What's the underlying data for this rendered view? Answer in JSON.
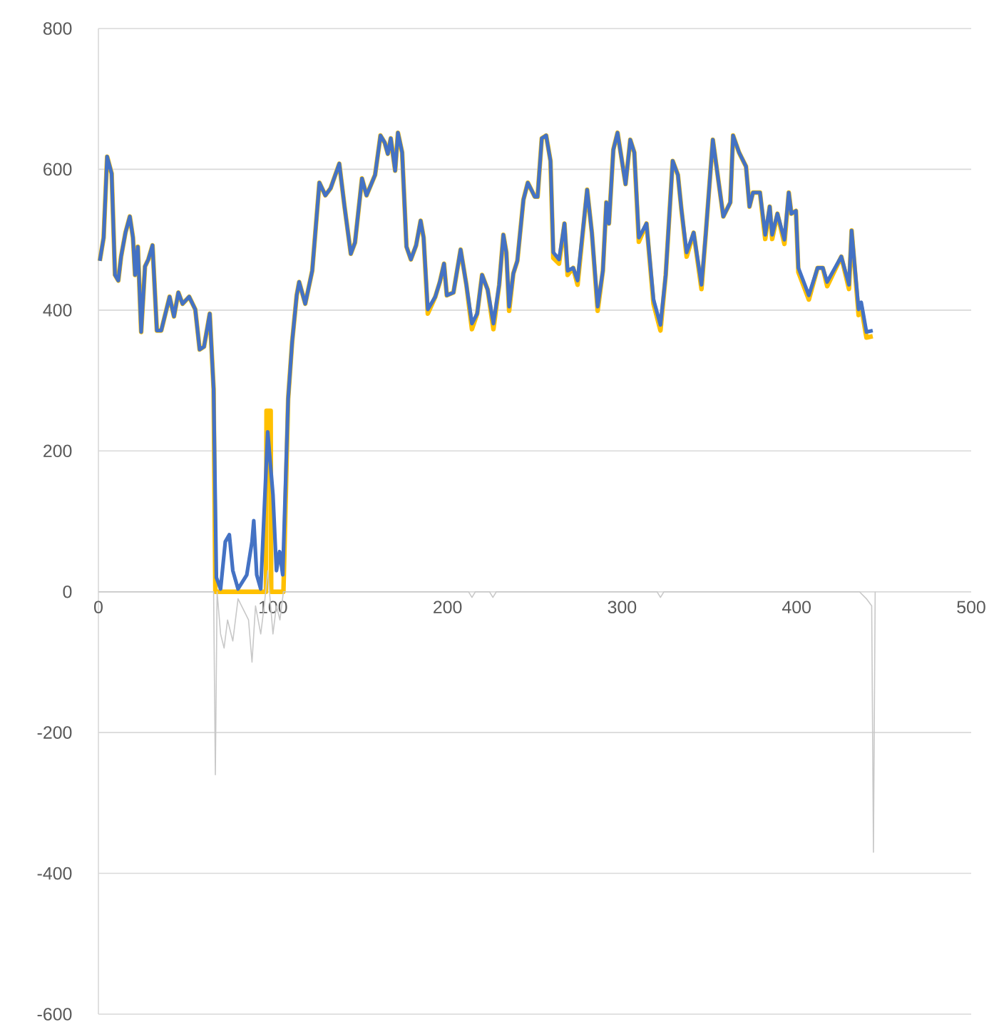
{
  "chart_data": {
    "type": "line",
    "xlim": [
      0,
      500
    ],
    "ylim": [
      -600,
      800
    ],
    "xticks": [
      0,
      100,
      200,
      300,
      400,
      500
    ],
    "yticks": [
      -600,
      -400,
      -200,
      0,
      200,
      400,
      600,
      800
    ],
    "grid": "y",
    "line_style": "solid",
    "series": [
      {
        "color": "#ffc000",
        "x": [
          0.8,
          3,
          5,
          7.6,
          9.5,
          11.4,
          13,
          15.5,
          18,
          19.8,
          21,
          22.6,
          24.5,
          26.7,
          28.6,
          31,
          33.5,
          36,
          40.8,
          43.3,
          45.8,
          48.2,
          52,
          55.5,
          58,
          60.5,
          63.8,
          66,
          67,
          96,
          96.3,
          98.7,
          99,
          106,
          108.7,
          111,
          113.6,
          115,
          118.5,
          122.5,
          126.6,
          130,
          133,
          138,
          141,
          144.6,
          147,
          151,
          153.6,
          158.5,
          161.6,
          164,
          165.8,
          167.5,
          170,
          171.6,
          174,
          176.5,
          179,
          182,
          184.6,
          186.3,
          188.7,
          193,
          195.6,
          198,
          199.6,
          203.4,
          207.5,
          210.8,
          214,
          217,
          219.8,
          223,
          226.3,
          229.6,
          232,
          233.7,
          235.3,
          237.7,
          240,
          243.5,
          246,
          250,
          251.6,
          254,
          256.5,
          259,
          260.6,
          263.9,
          267,
          268.8,
          272,
          274.5,
          280,
          282.7,
          286,
          289,
          291,
          292.5,
          295,
          297.4,
          302,
          304.7,
          307,
          309.6,
          314,
          318,
          322,
          325,
          329,
          332,
          334,
          337,
          341,
          345.5,
          348,
          352,
          358,
          362,
          363.6,
          367,
          371,
          373,
          375,
          379,
          382,
          384.6,
          386,
          389,
          393,
          395.5,
          397,
          399.6,
          401,
          407,
          412,
          415,
          417.5,
          425.6,
          430,
          431.5,
          435.5,
          437,
          440,
          443.6
        ],
        "values": [
          470,
          503,
          618,
          594,
          450,
          442,
          476,
          510,
          533,
          503,
          450,
          490,
          369,
          462,
          472,
          492,
          371,
          371,
          419,
          391,
          425,
          409,
          419,
          401,
          344,
          348,
          395,
          288,
          0,
          0,
          257,
          257,
          0,
          0,
          274,
          355,
          421,
          440,
          409,
          456,
          581,
          563,
          573,
          608,
          547,
          480,
          496,
          587,
          563,
          592,
          648,
          638,
          622,
          644,
          598,
          652,
          624,
          490,
          472,
          492,
          527,
          503,
          395,
          419,
          440,
          466,
          421,
          425,
          486,
          436,
          373,
          395,
          450,
          429,
          373,
          436,
          507,
          482,
          399,
          452,
          470,
          557,
          581,
          561,
          561,
          644,
          648,
          612,
          474,
          466,
          523,
          450,
          460,
          436,
          571,
          510,
          399,
          456,
          553,
          523,
          628,
          652,
          579,
          642,
          624,
          497,
          523,
          409,
          371,
          450,
          612,
          592,
          543,
          476,
          510,
          430,
          510,
          642,
          533,
          553,
          648,
          624,
          604,
          547,
          567,
          567,
          501,
          547,
          501,
          537,
          494,
          567,
          537,
          541,
          454,
          415,
          460,
          460,
          434,
          476,
          430,
          513,
          393,
          405,
          361,
          363
        ]
      },
      {
        "color": "#4472c4",
        "x": [
          0.8,
          3,
          5,
          7.6,
          9.5,
          11.4,
          13,
          15.5,
          18,
          19.8,
          21,
          22.6,
          24.5,
          26.7,
          28.6,
          31,
          33.5,
          36,
          40.8,
          43.3,
          45.8,
          48.2,
          52,
          55.5,
          58,
          60.5,
          63.8,
          66,
          67.6,
          70,
          72.7,
          75,
          77,
          80,
          85,
          88,
          89,
          90.7,
          93,
          97,
          100,
          102,
          103.8,
          105.6,
          108.7,
          111,
          113.6,
          115,
          118.5,
          122.5,
          126.6,
          130,
          133,
          138,
          141,
          144.6,
          147,
          151,
          153.6,
          158.5,
          161.6,
          164,
          165.8,
          167.5,
          170,
          171.6,
          174,
          176.5,
          179,
          182,
          184.6,
          186.3,
          188.7,
          193,
          195.6,
          198,
          199.6,
          203.4,
          207.5,
          210.8,
          214,
          217,
          219.8,
          223,
          226.3,
          229.6,
          232,
          233.7,
          235.3,
          237.7,
          240,
          243.5,
          246,
          250,
          251.6,
          254,
          256.5,
          259,
          260.6,
          263.9,
          267,
          268.8,
          272,
          274.5,
          280,
          282.7,
          286,
          289,
          291,
          292.5,
          295,
          297.4,
          302,
          304.7,
          307,
          309.6,
          314,
          318,
          322,
          325,
          329,
          332,
          334,
          337,
          341,
          345.5,
          348,
          352,
          358,
          362,
          363.6,
          367,
          371,
          373,
          375,
          379,
          382,
          384.6,
          386,
          389,
          393,
          395.5,
          397,
          399.6,
          401,
          407,
          412,
          415,
          417.5,
          425.6,
          430,
          431.5,
          435.5,
          437,
          440,
          443.6
        ],
        "values": [
          470,
          503,
          618,
          594,
          450,
          442,
          476,
          510,
          533,
          503,
          450,
          490,
          369,
          462,
          472,
          492,
          371,
          371,
          419,
          391,
          425,
          409,
          419,
          401,
          344,
          348,
          395,
          288,
          20,
          4,
          71,
          81,
          30,
          4,
          24,
          71,
          101,
          24,
          4,
          227,
          138,
          30,
          57,
          24,
          274,
          355,
          421,
          440,
          409,
          456,
          581,
          563,
          573,
          608,
          547,
          480,
          496,
          587,
          563,
          592,
          648,
          638,
          622,
          644,
          598,
          652,
          624,
          490,
          472,
          492,
          527,
          503,
          401,
          419,
          440,
          466,
          421,
          425,
          486,
          436,
          381,
          395,
          450,
          429,
          381,
          436,
          507,
          482,
          405,
          452,
          470,
          557,
          581,
          561,
          561,
          644,
          648,
          612,
          482,
          472,
          523,
          456,
          460,
          442,
          571,
          510,
          405,
          456,
          553,
          523,
          628,
          652,
          579,
          642,
          624,
          503,
          523,
          415,
          379,
          450,
          612,
          592,
          543,
          482,
          510,
          436,
          510,
          642,
          533,
          553,
          648,
          624,
          604,
          547,
          567,
          567,
          507,
          547,
          507,
          537,
          500,
          567,
          537,
          541,
          460,
          421,
          460,
          460,
          440,
          476,
          436,
          513,
          401,
          411,
          369,
          371
        ]
      },
      {
        "color": "#c8c8c8",
        "x": [
          0,
          66,
          67,
          68,
          70,
          72,
          74,
          77,
          80,
          86,
          88,
          90,
          93,
          95,
          97,
          100,
          102,
          104,
          106,
          212,
          214,
          216,
          224,
          226,
          228,
          320,
          322,
          324,
          436,
          440,
          443,
          444,
          445
        ],
        "values": [
          0,
          0,
          -260,
          0,
          -60,
          -80,
          -40,
          -70,
          -10,
          -40,
          -100,
          -20,
          -60,
          -20,
          30,
          -60,
          -20,
          -40,
          0,
          0,
          -8,
          0,
          0,
          -8,
          0,
          0,
          -8,
          0,
          0,
          -10,
          -20,
          -370,
          0
        ]
      }
    ]
  }
}
